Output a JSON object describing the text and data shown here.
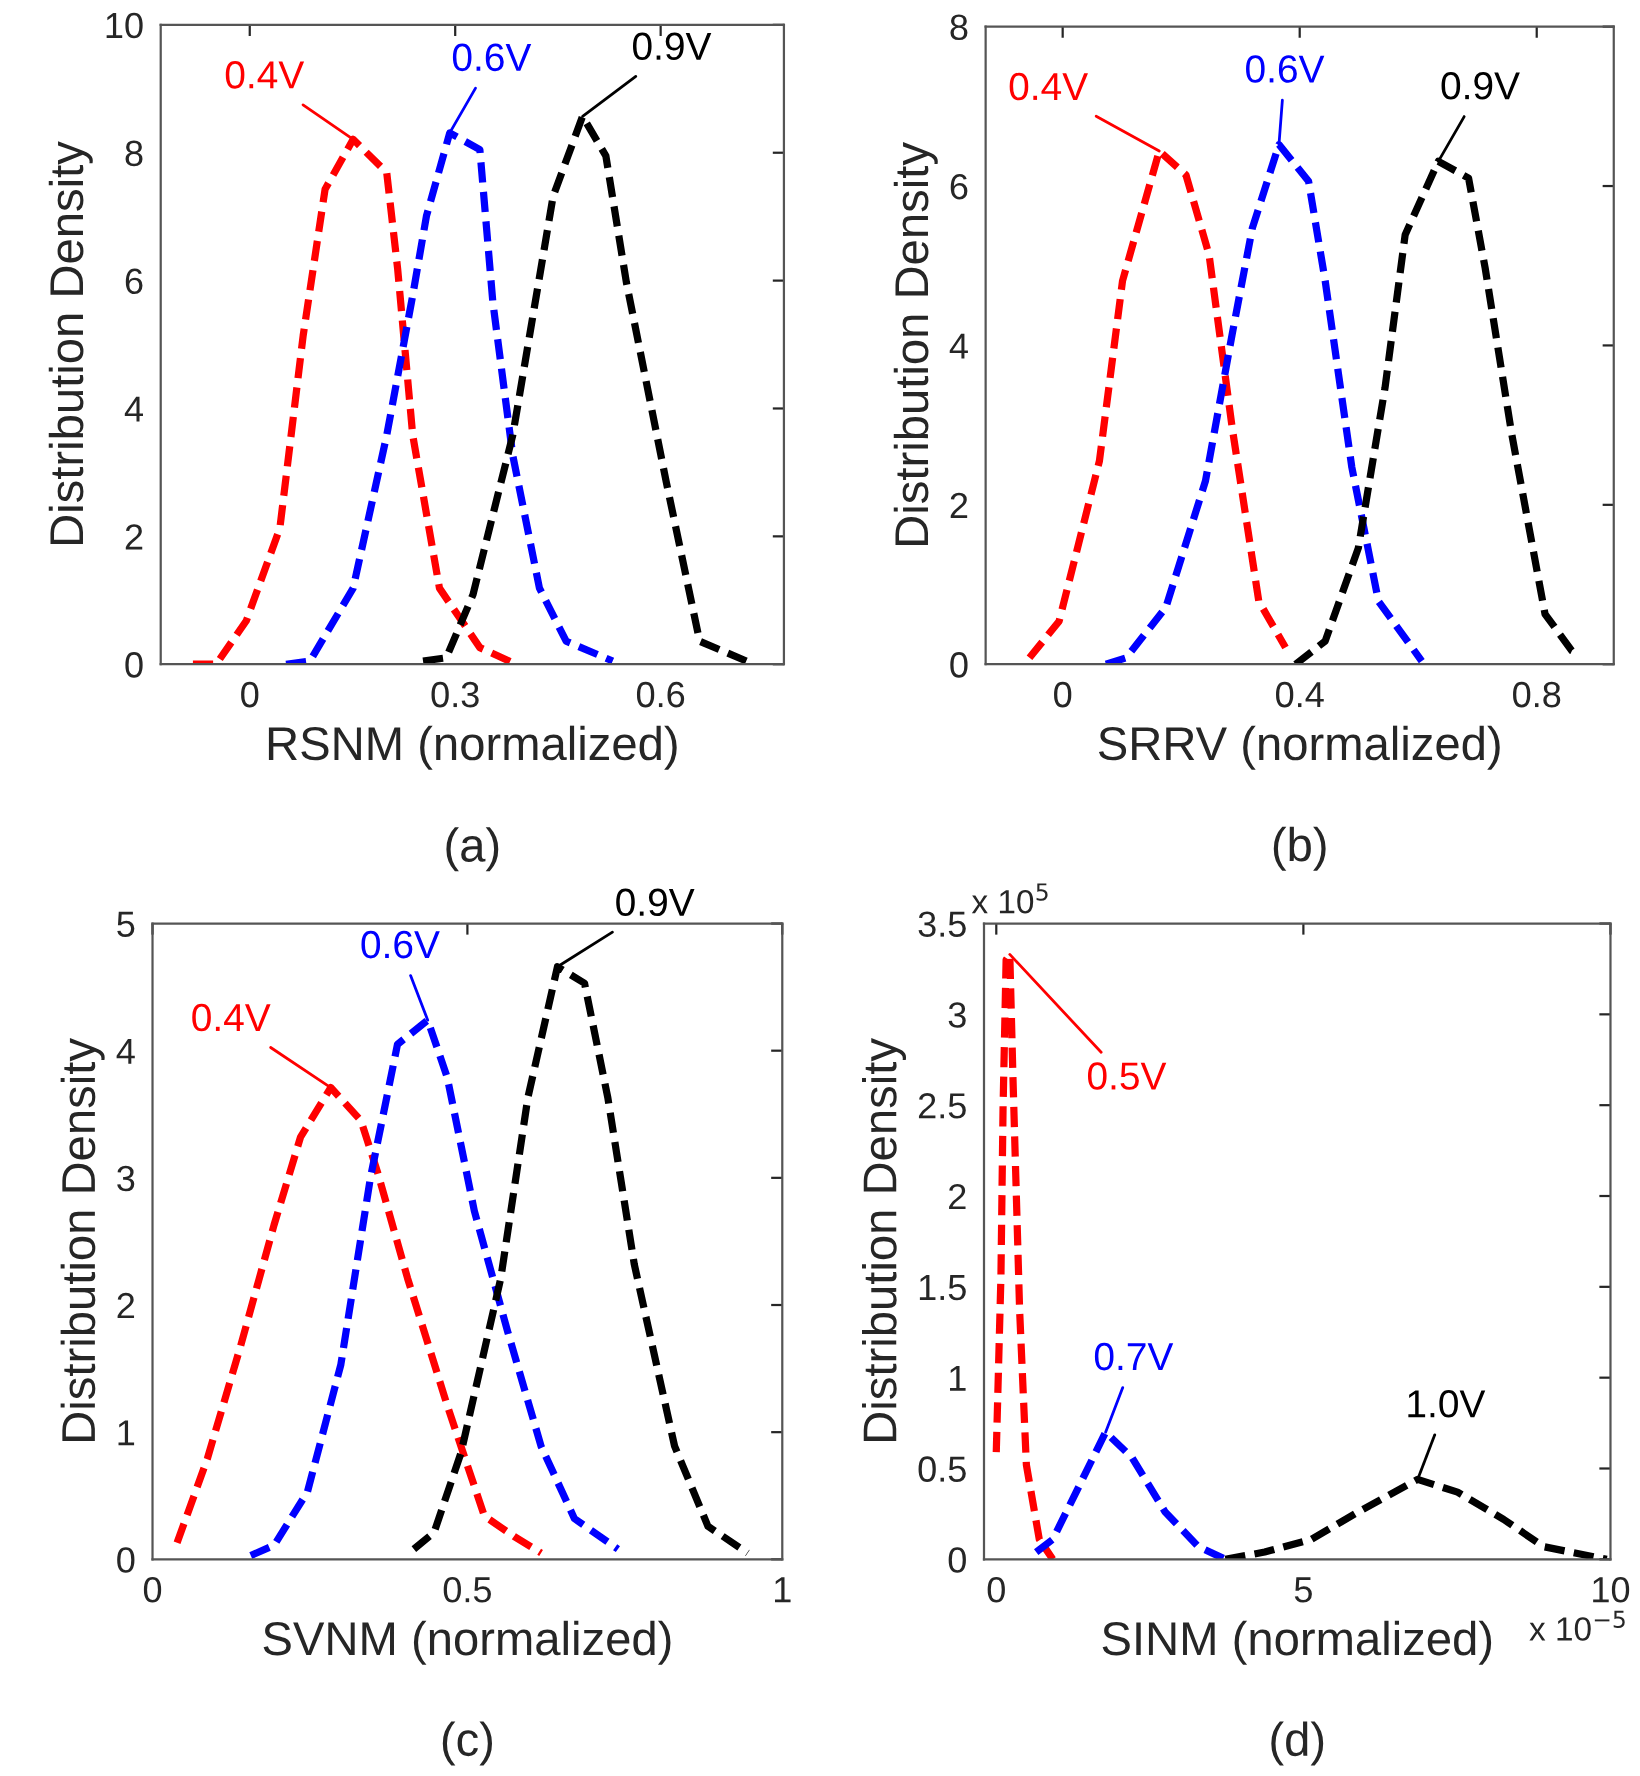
{
  "chart_data": [
    {
      "type": "line",
      "xlabel": "RSNM (normalized)",
      "ylabel": "Distribution Density",
      "xlim": [
        -0.13,
        0.78
      ],
      "ylim": [
        0,
        10
      ],
      "xticks": [
        0,
        0.3,
        0.6
      ],
      "yticks": [
        0,
        2,
        4,
        6,
        8,
        10
      ],
      "grid": false,
      "legend": false,
      "marker": "none",
      "line_style": "dashed",
      "annotations": [
        "(a)"
      ],
      "series": [
        {
          "name": "0.4V",
          "color": "#ff0000",
          "x": [
            -0.083,
            -0.049,
            -0.005,
            0.044,
            0.078,
            0.11,
            0.151,
            0.2,
            0.216,
            0.238,
            0.277,
            0.336,
            0.389
          ],
          "values": [
            0,
            0,
            0.68,
            2.13,
            5.14,
            7.43,
            8.21,
            7.69,
            6.18,
            3.58,
            1.19,
            0.26,
            0
          ]
        },
        {
          "name": "0.6V",
          "color": "#0000ff",
          "x": [
            0.053,
            0.088,
            0.151,
            0.2,
            0.238,
            0.258,
            0.292,
            0.336,
            0.355,
            0.384,
            0.423,
            0.462,
            0.53
          ],
          "values": [
            0,
            0.05,
            1.19,
            3.58,
            5.77,
            7.01,
            8.31,
            8.05,
            5.66,
            3.27,
            1.19,
            0.36,
            0.05
          ]
        },
        {
          "name": "0.9V",
          "color": "#000000",
          "x": [
            0.253,
            0.287,
            0.326,
            0.384,
            0.443,
            0.486,
            0.52,
            0.55,
            0.608,
            0.657,
            0.725
          ],
          "values": [
            0.05,
            0.1,
            1.09,
            3.58,
            7.32,
            8.57,
            7.95,
            5.97,
            2.86,
            0.36,
            0.05
          ]
        }
      ]
    },
    {
      "type": "line",
      "xlabel": "SRRV (normalized)",
      "ylabel": "Distribution Density",
      "xlim": [
        -0.13,
        0.93
      ],
      "ylim": [
        0,
        8
      ],
      "xticks": [
        0,
        0.4,
        0.8
      ],
      "yticks": [
        0,
        2,
        4,
        6,
        8
      ],
      "grid": false,
      "legend": false,
      "marker": "none",
      "line_style": "dashed",
      "annotations": [
        "(b)"
      ],
      "series": [
        {
          "name": "0.4V",
          "color": "#ff0000",
          "x": [
            -0.056,
            -0.006,
            0.062,
            0.101,
            0.163,
            0.208,
            0.247,
            0.286,
            0.331,
            0.376
          ],
          "values": [
            0.08,
            0.54,
            2.55,
            4.81,
            6.44,
            6.14,
            5.14,
            2.97,
            0.79,
            0.21
          ]
        },
        {
          "name": "0.6V",
          "color": "#0000ff",
          "x": [
            0.073,
            0.107,
            0.174,
            0.241,
            0.286,
            0.32,
            0.365,
            0.415,
            0.443,
            0.488,
            0.533,
            0.606
          ],
          "values": [
            0,
            0.08,
            0.71,
            2.3,
            4.14,
            5.47,
            6.52,
            6.06,
            4.81,
            2.47,
            0.79,
            0.04
          ]
        },
        {
          "name": "0.9V",
          "color": "#000000",
          "x": [
            0.393,
            0.443,
            0.499,
            0.544,
            0.578,
            0.634,
            0.685,
            0.713,
            0.758,
            0.814,
            0.859,
            0.87
          ],
          "values": [
            0,
            0.29,
            1.46,
            3.47,
            5.39,
            6.31,
            6.1,
            4.97,
            2.88,
            0.63,
            0.17,
            0.13
          ]
        }
      ]
    },
    {
      "type": "line",
      "xlabel": "SVNM (normalized)",
      "ylabel": "Distribution Density",
      "xlim": [
        0,
        1
      ],
      "ylim": [
        0,
        5
      ],
      "xticks": [
        0,
        0.5,
        1
      ],
      "yticks": [
        0,
        1,
        2,
        3,
        4,
        5
      ],
      "grid": false,
      "legend": false,
      "marker": "none",
      "line_style": "dashed",
      "annotations": [
        "(c)"
      ],
      "series": [
        {
          "name": "0.4V",
          "color": "#ff0000",
          "x": [
            0.039,
            0.087,
            0.14,
            0.193,
            0.235,
            0.283,
            0.331,
            0.357,
            0.405,
            0.468,
            0.527,
            0.574,
            0.617
          ],
          "values": [
            0.13,
            0.79,
            1.68,
            2.63,
            3.32,
            3.71,
            3.45,
            3.05,
            2.21,
            1.21,
            0.34,
            0.18,
            0.05
          ]
        },
        {
          "name": "0.6V",
          "color": "#0000ff",
          "x": [
            0.156,
            0.193,
            0.246,
            0.299,
            0.346,
            0.389,
            0.437,
            0.468,
            0.511,
            0.564,
            0.617,
            0.67,
            0.739
          ],
          "values": [
            0.03,
            0.11,
            0.53,
            1.53,
            3.0,
            4.05,
            4.24,
            3.79,
            2.74,
            1.79,
            0.89,
            0.32,
            0.08
          ]
        },
        {
          "name": "0.9V",
          "color": "#000000",
          "x": [
            0.415,
            0.447,
            0.49,
            0.553,
            0.596,
            0.643,
            0.686,
            0.723,
            0.765,
            0.829,
            0.882,
            0.945
          ],
          "values": [
            0.08,
            0.21,
            0.84,
            2.21,
            3.63,
            4.66,
            4.53,
            3.63,
            2.32,
            0.89,
            0.26,
            0.05
          ]
        }
      ]
    },
    {
      "type": "line",
      "xlabel": "SINM (normalized)",
      "ylabel": "Distribution Density",
      "xlim": [
        -0.2,
        10
      ],
      "ylim": [
        0,
        3.5
      ],
      "xticks": [
        0,
        5,
        10
      ],
      "yticks": [
        0,
        0.5,
        1,
        1.5,
        2,
        2.5,
        3,
        3.5
      ],
      "grid": false,
      "legend": false,
      "marker": "none",
      "line_style": "dashed",
      "annotations": [
        "(d)",
        "x 10$^{5}$",
        "x 10$^{−5}$"
      ],
      "series": [
        {
          "name": "0.5V",
          "color": "#ff0000",
          "x": [
            0,
            0.076,
            0.11,
            0.16,
            0.22,
            0.27,
            0.38,
            0.49,
            0.7,
            0.92
          ],
          "values": [
            0.59,
            1.56,
            2.48,
            3.3,
            3.33,
            2.67,
            1.37,
            0.52,
            0.11,
            0
          ]
        },
        {
          "name": "0.7V",
          "color": "#0000ff",
          "x": [
            0.65,
            0.92,
            1.3,
            1.78,
            2.21,
            2.75,
            3.29,
            3.73
          ],
          "values": [
            0.04,
            0.11,
            0.37,
            0.7,
            0.56,
            0.26,
            0.07,
            0
          ]
        },
        {
          "name": "1.0V",
          "color": "#000000",
          "x": [
            3.73,
            4.37,
            5.13,
            5.89,
            6.86,
            7.51,
            8.26,
            8.91,
            9.94
          ],
          "values": [
            0,
            0.04,
            0.11,
            0.26,
            0.44,
            0.37,
            0.22,
            0.07,
            0
          ]
        }
      ]
    }
  ]
}
